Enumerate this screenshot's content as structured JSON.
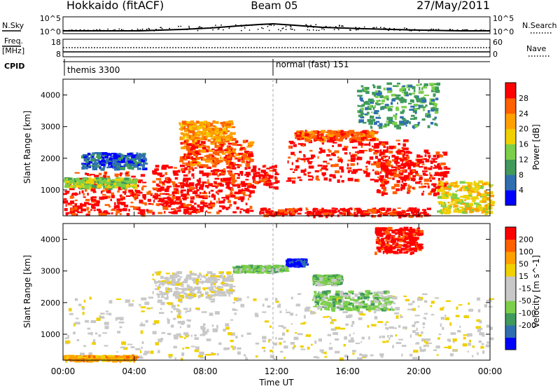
{
  "header": {
    "station": "Hokkaido (fitACF)",
    "beam": "Beam 05",
    "date": "27/May/2011"
  },
  "top_panel": {
    "left_label": "N.Sky",
    "right_label": "N.Search",
    "left_ticks": [
      "10^5",
      "10^0"
    ],
    "right_ticks": [
      "10^5",
      "10^0"
    ]
  },
  "freq_panel": {
    "left_label_1": "Freq.",
    "left_label_2": "[MHz]",
    "right_label": "Nave",
    "left_ticks": [
      "18",
      "8"
    ],
    "right_ticks": [
      "60",
      "0"
    ]
  },
  "cpid": {
    "label": "CPID",
    "left_mode": "themis 3300",
    "right_mode": "normal (fast) 151"
  },
  "colors": {
    "power_scale": [
      "#0000ff",
      "#2f6fb0",
      "#3f9a5c",
      "#7ccf4a",
      "#f0d000",
      "#ffa000",
      "#ff6000",
      "#ff0000"
    ],
    "velocity_scale": [
      "#ff0000",
      "#ff6000",
      "#ffa000",
      "#f0d000",
      "#c8c8c8",
      "#c8c8c8",
      "#7ccf4a",
      "#3f9a5c",
      "#2f6fb0",
      "#0000ff"
    ],
    "ground_scatter": "#c8c8c8"
  },
  "chart_data": [
    {
      "type": "heatmap",
      "title": "",
      "quantity": "Power",
      "xlabel": "",
      "ylabel": "Slant Range [km]",
      "ylim": [
        180,
        4500
      ],
      "y_ticks": [
        "1000",
        "2000",
        "3000",
        "4000"
      ],
      "colorbar_label": "Power [dB]",
      "colorbar_ticks": [
        "4",
        "8",
        "12",
        "16",
        "20",
        "24",
        "28"
      ],
      "x_ticks": [],
      "scatter_regions": [
        {
          "t": [
            0,
            4.5
          ],
          "r": [
            250,
            1600
          ],
          "level": 7
        },
        {
          "t": [
            0,
            4.0
          ],
          "r": [
            1100,
            1400
          ],
          "level": 3
        },
        {
          "t": [
            1.0,
            4.5
          ],
          "r": [
            1700,
            2200
          ],
          "level": 1
        },
        {
          "t": [
            4.5,
            10.5
          ],
          "r": [
            300,
            1100
          ],
          "level": 7
        },
        {
          "t": [
            5.0,
            12.0
          ],
          "r": [
            1100,
            1800
          ],
          "level": 7
        },
        {
          "t": [
            6.5,
            10.5
          ],
          "r": [
            1800,
            2600
          ],
          "level": 6
        },
        {
          "t": [
            6.5,
            9.5
          ],
          "r": [
            2600,
            3200
          ],
          "level": 5
        },
        {
          "t": [
            12.5,
            19.5
          ],
          "r": [
            1300,
            2600
          ],
          "level": 7
        },
        {
          "t": [
            13.0,
            17.5
          ],
          "r": [
            2600,
            2900
          ],
          "level": 6
        },
        {
          "t": [
            17.5,
            21.5
          ],
          "r": [
            900,
            2300
          ],
          "level": 7
        },
        {
          "t": [
            21.0,
            24.0
          ],
          "r": [
            300,
            1300
          ],
          "level": 4
        },
        {
          "t": [
            11.0,
            20.5
          ],
          "r": [
            200,
            450
          ],
          "level": 7
        },
        {
          "t": [
            16.5,
            21.0
          ],
          "r": [
            3000,
            4400
          ],
          "level": 2
        }
      ]
    },
    {
      "type": "heatmap",
      "title": "",
      "quantity": "Velocity",
      "xlabel": "Time UT",
      "ylabel": "Slant Range [km]",
      "ylim": [
        180,
        4500
      ],
      "y_ticks": [
        "1000",
        "2000",
        "3000",
        "4000"
      ],
      "colorbar_label": "Velocity [m s^-1]",
      "colorbar_ticks": [
        "200",
        "100",
        "50",
        "15",
        "-15",
        "-50",
        "-100",
        "-200"
      ],
      "x_ticks": [
        "00:00",
        "04:00",
        "08:00",
        "12:00",
        "16:00",
        "20:00",
        "00:00"
      ],
      "scatter_regions": [
        {
          "t": [
            0,
            12.5
          ],
          "r": [
            250,
            2200
          ],
          "level": 4
        },
        {
          "t": [
            12.5,
            24.0
          ],
          "r": [
            250,
            2300
          ],
          "level": 4
        },
        {
          "t": [
            5.0,
            9.5
          ],
          "r": [
            2200,
            3000
          ],
          "level": 4
        },
        {
          "t": [
            9.5,
            12.5
          ],
          "r": [
            3000,
            3200
          ],
          "level": 6
        },
        {
          "t": [
            14.0,
            18.5
          ],
          "r": [
            1800,
            2400
          ],
          "level": 6
        },
        {
          "t": [
            14.0,
            15.5
          ],
          "r": [
            2600,
            2900
          ],
          "level": 6
        },
        {
          "t": [
            12.5,
            13.5
          ],
          "r": [
            3200,
            3400
          ],
          "level": 9
        },
        {
          "t": [
            17.5,
            20.0
          ],
          "r": [
            3600,
            4400
          ],
          "level": 0
        },
        {
          "t": [
            0,
            4.0
          ],
          "r": [
            200,
            350
          ],
          "level": 2
        }
      ]
    }
  ]
}
